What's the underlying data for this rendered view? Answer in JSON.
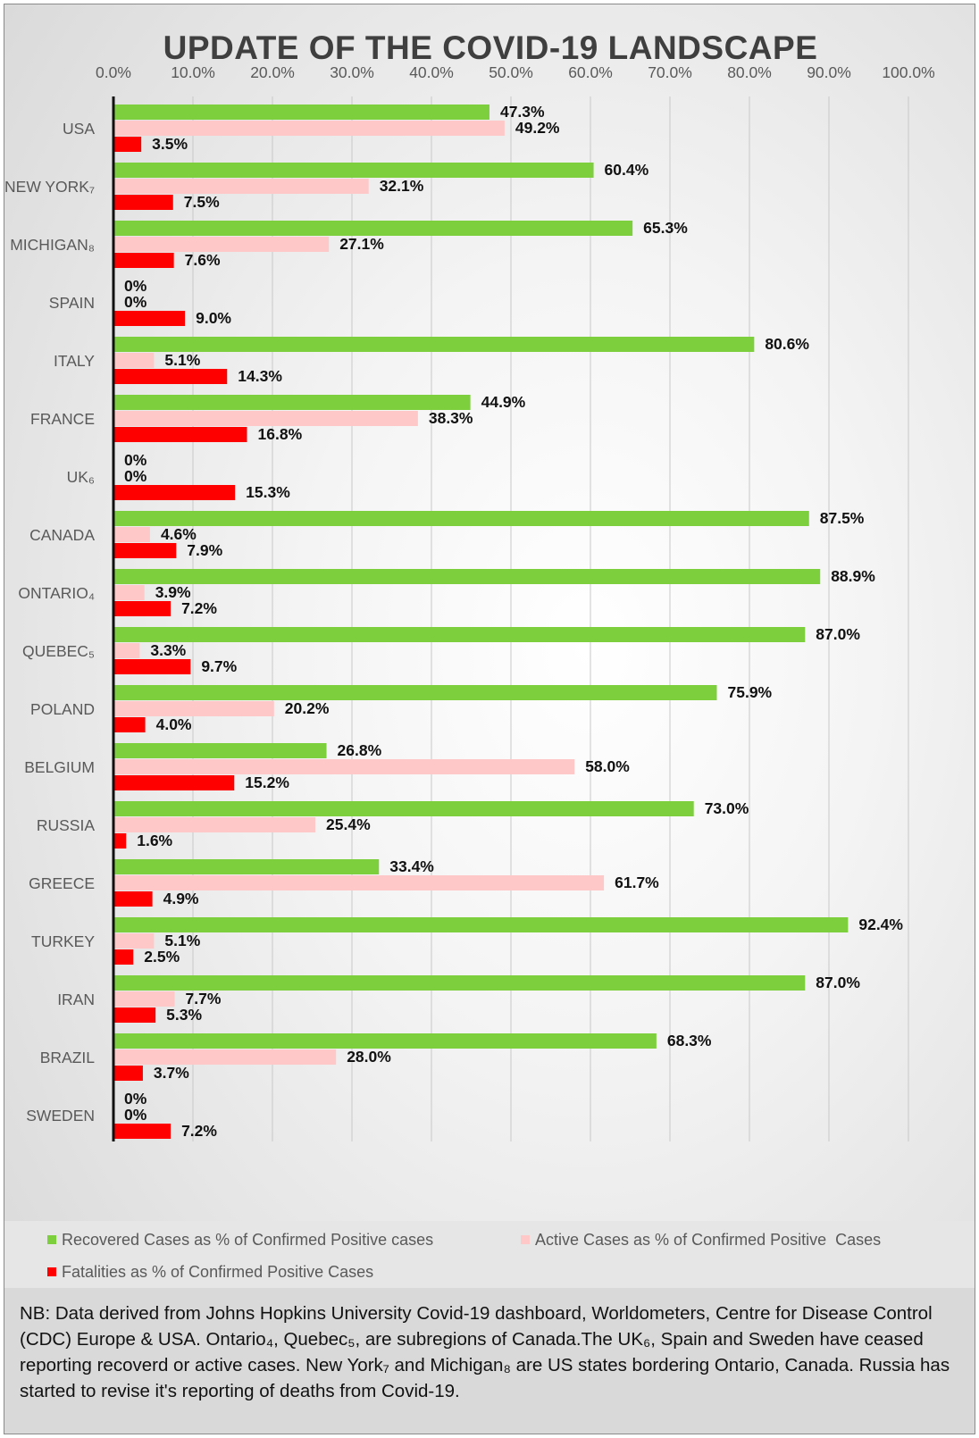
{
  "chart_data": {
    "type": "bar",
    "orientation": "horizontal",
    "title": "UPDATE OF THE COVID-19 LANDSCAPE",
    "categories": [
      "USA",
      "NEW YORK₇",
      "MICHIGAN₈",
      "SPAIN",
      "ITALY",
      "FRANCE",
      "UK₆",
      "CANADA",
      "ONTARIO₄",
      "QUEBEC₅",
      "POLAND",
      "BELGIUM",
      "RUSSIA",
      "GREECE",
      "TURKEY",
      "IRAN",
      "BRAZIL",
      "SWEDEN"
    ],
    "series": [
      {
        "name": "Recovered Cases as % of Confirmed Positive cases",
        "color": "#7dcf3e",
        "values": [
          47.3,
          60.4,
          65.3,
          0,
          80.6,
          44.9,
          0,
          87.5,
          88.9,
          87.0,
          75.9,
          26.8,
          73.0,
          33.4,
          92.4,
          87.0,
          68.3,
          0
        ],
        "labels": [
          "47.3%",
          "60.4%",
          "65.3%",
          "0%",
          "80.6%",
          "44.9%",
          "0%",
          "87.5%",
          "88.9%",
          "87.0%",
          "75.9%",
          "26.8%",
          "73.0%",
          "33.4%",
          "92.4%",
          "87.0%",
          "68.3%",
          "0%"
        ]
      },
      {
        "name": "Active Cases as % of Confirmed Positive  Cases",
        "color": "#ffc8c8",
        "values": [
          49.2,
          32.1,
          27.1,
          0,
          5.1,
          38.3,
          0,
          4.6,
          3.9,
          3.3,
          20.2,
          58.0,
          25.4,
          61.7,
          5.1,
          7.7,
          28.0,
          0
        ],
        "labels": [
          "49.2%",
          "32.1%",
          "27.1%",
          "0%",
          "5.1%",
          "38.3%",
          "0%",
          "4.6%",
          "3.9%",
          "3.3%",
          "20.2%",
          "58.0%",
          "25.4%",
          "61.7%",
          "5.1%",
          "7.7%",
          "28.0%",
          "0%"
        ]
      },
      {
        "name": "Fatalities as % of Confirmed Positive Cases",
        "color": "#ff0000",
        "values": [
          3.5,
          7.5,
          7.6,
          9.0,
          14.3,
          16.8,
          15.3,
          7.9,
          7.2,
          9.7,
          4.0,
          15.2,
          1.6,
          4.9,
          2.5,
          5.3,
          3.7,
          7.2
        ],
        "labels": [
          "3.5%",
          "7.5%",
          "7.6%",
          "9.0%",
          "14.3%",
          "16.8%",
          "15.3%",
          "7.9%",
          "7.2%",
          "9.7%",
          "4.0%",
          "15.2%",
          "1.6%",
          "4.9%",
          "2.5%",
          "5.3%",
          "3.7%",
          "7.2%"
        ]
      }
    ],
    "xlim": [
      0,
      100
    ],
    "x_ticks": [
      "0.0%",
      "10.0%",
      "20.0%",
      "30.0%",
      "40.0%",
      "50.0%",
      "60.0%",
      "70.0%",
      "80.0%",
      "90.0%",
      "100.0%"
    ],
    "x_axis_position": "top",
    "grid": true,
    "legend_position": "bottom"
  },
  "note": "NB: Data derived from Johns Hopkins University Covid-19 dashboard, Worldometers, Centre for Disease Control (CDC) Europe & USA. Ontario₄, Quebec₅, are subregions of Canada.The UK₆, Spain and Sweden have ceased reporting recoverd or active cases. New York₇ and Michigan₈ are US states bordering Ontario, Canada. Russia has started to revise it's reporting of deaths from Covid-19."
}
